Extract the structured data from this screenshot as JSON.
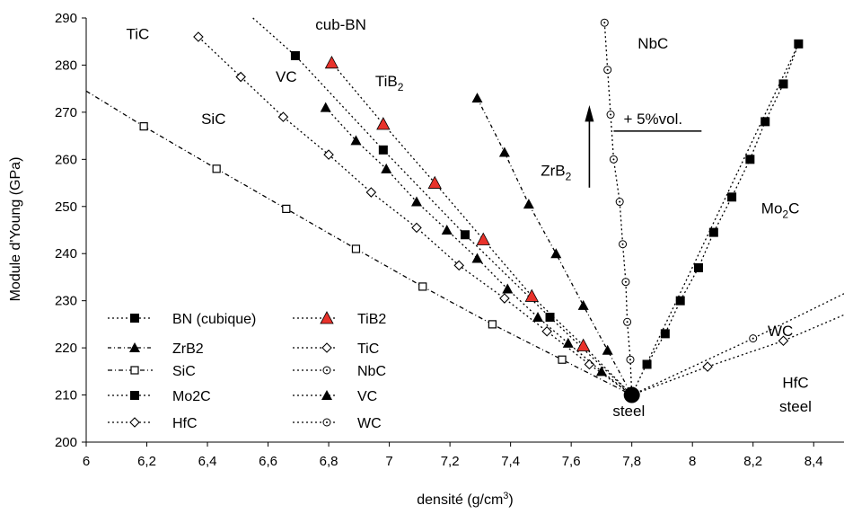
{
  "chart_data": {
    "type": "line",
    "xlabel": "densité (g/cm",
    "xlabel_sup": "3",
    "xlabel_end": ")",
    "ylabel": "Module d'Young (GPa)",
    "xlim": [
      6,
      8.5
    ],
    "ylim": [
      200,
      290
    ],
    "xticks": [
      6,
      6.2,
      6.4,
      6.6,
      6.8,
      7,
      7.2,
      7.4,
      7.6,
      7.8,
      8,
      8.2,
      8.4
    ],
    "xtick_labels": [
      "6",
      "6,2",
      "6,4",
      "6,6",
      "6,8",
      "7",
      "7,2",
      "7,4",
      "7,6",
      "7,8",
      "8",
      "8,2",
      "8,4"
    ],
    "yticks": [
      200,
      210,
      220,
      230,
      240,
      250,
      260,
      270,
      280,
      290
    ],
    "ytick_labels": [
      "200",
      "210",
      "220",
      "230",
      "240",
      "250",
      "260",
      "270",
      "280",
      "290"
    ],
    "legend_position": "bottom-left",
    "origin_point": {
      "x": 7.8,
      "y": 210
    },
    "series": [
      {
        "name": "BN (cubique)",
        "color": "#000000",
        "marker": "square-filled",
        "dash": "2,3",
        "line_start": {
          "x": 6.55,
          "y": 290
        },
        "points": [
          [
            6.69,
            282
          ],
          [
            6.98,
            262
          ],
          [
            7.25,
            244
          ],
          [
            7.53,
            226.5
          ]
        ]
      },
      {
        "name": "TiB2",
        "color": "#e8322b",
        "marker": "triangle-red",
        "dash": "2,3",
        "points": [
          [
            6.81,
            280.5
          ],
          [
            6.98,
            267.5
          ],
          [
            7.15,
            255
          ],
          [
            7.31,
            243
          ],
          [
            7.47,
            231
          ],
          [
            7.64,
            220.5
          ]
        ]
      },
      {
        "name": "ZrB2",
        "color": "#000000",
        "marker": "triangle-filled",
        "dash": "4,3,1,3",
        "points": [
          [
            7.29,
            273
          ],
          [
            7.38,
            261.5
          ],
          [
            7.46,
            250.5
          ],
          [
            7.55,
            240
          ],
          [
            7.64,
            229
          ],
          [
            7.72,
            219.5
          ]
        ]
      },
      {
        "name": "TiC",
        "color": "#000000",
        "marker": "diamond-open",
        "dash": "2,3",
        "points": [
          [
            6.37,
            286
          ],
          [
            6.51,
            277.5
          ],
          [
            6.65,
            269
          ],
          [
            6.8,
            261
          ],
          [
            6.94,
            253
          ],
          [
            7.09,
            245.5
          ],
          [
            7.23,
            237.5
          ],
          [
            7.38,
            230.5
          ],
          [
            7.52,
            223.5
          ],
          [
            7.66,
            216.5
          ]
        ]
      },
      {
        "name": "SiC",
        "color": "#000000",
        "marker": "square-open",
        "dash": "5,3,1,3",
        "line_start": {
          "x": 6.0,
          "y": 274.5
        },
        "points": [
          [
            6.19,
            267
          ],
          [
            6.43,
            258
          ],
          [
            6.66,
            249.5
          ],
          [
            6.89,
            241
          ],
          [
            7.11,
            233
          ],
          [
            7.34,
            225
          ],
          [
            7.57,
            217.5
          ]
        ]
      },
      {
        "name": "NbC",
        "color": "#000000",
        "marker": "circle-dot",
        "dash": "2,3",
        "points": [
          [
            7.71,
            289
          ],
          [
            7.72,
            279
          ],
          [
            7.73,
            269.5
          ],
          [
            7.74,
            260
          ],
          [
            7.76,
            251
          ],
          [
            7.77,
            242
          ],
          [
            7.78,
            234
          ],
          [
            7.785,
            225.5
          ],
          [
            7.795,
            217.5
          ]
        ]
      },
      {
        "name": "Mo2C",
        "color": "#000000",
        "marker": "square-filled",
        "dash": "2,3",
        "points": [
          [
            7.85,
            216.5
          ],
          [
            7.91,
            223
          ],
          [
            7.96,
            230
          ],
          [
            8.02,
            237
          ],
          [
            8.07,
            244.5
          ],
          [
            8.13,
            252
          ],
          [
            8.19,
            260
          ],
          [
            8.24,
            268
          ],
          [
            8.3,
            276
          ],
          [
            8.35,
            284.5
          ]
        ]
      },
      {
        "name": "VC",
        "color": "#000000",
        "marker": "triangle-filled",
        "dash": "2,3",
        "points": [
          [
            6.79,
            271
          ],
          [
            6.89,
            264
          ],
          [
            6.99,
            258
          ],
          [
            7.09,
            251
          ],
          [
            7.19,
            245
          ],
          [
            7.29,
            239
          ],
          [
            7.39,
            232.5
          ],
          [
            7.49,
            226.5
          ],
          [
            7.59,
            221
          ],
          [
            7.7,
            215
          ]
        ]
      },
      {
        "name": "HfC",
        "color": "#000000",
        "marker": "diamond-open",
        "dash": "2,3",
        "line_end": {
          "x": 8.5,
          "y": 227
        },
        "points": [
          [
            8.05,
            216
          ],
          [
            8.3,
            221.5
          ]
        ]
      },
      {
        "name": "WC",
        "color": "#000000",
        "marker": "circle-dot",
        "dash": "2,3",
        "line_end": {
          "x": 8.5,
          "y": 231.5
        },
        "points": [
          [
            8.2,
            222
          ]
        ]
      }
    ],
    "annotations": [
      {
        "text": "TiC",
        "x": 6.17,
        "y": 285.5
      },
      {
        "text": "cub-BN",
        "x": 6.84,
        "y": 287.5
      },
      {
        "text": "VC",
        "x": 6.66,
        "y": 276.5
      },
      {
        "text": "TiB",
        "sub": "2",
        "x": 7.0,
        "y": 275.5
      },
      {
        "text": "SiC",
        "x": 6.42,
        "y": 267.5
      },
      {
        "text": "NbC",
        "x": 7.87,
        "y": 283.5
      },
      {
        "text": "ZrB",
        "sub": "2",
        "x": 7.55,
        "y": 256.5
      },
      {
        "text": "+ 5%vol.",
        "x": 7.87,
        "y": 267.5
      },
      {
        "text": "Mo",
        "sub": "2",
        "after": "C",
        "x": 8.29,
        "y": 248.5
      },
      {
        "text": "WC",
        "x": 8.29,
        "y": 222.5
      },
      {
        "text": "HfC",
        "x": 8.34,
        "y": 211.5
      },
      {
        "text": "steel",
        "x": 7.79,
        "y": 205.5
      },
      {
        "text": "steel",
        "x": 8.34,
        "y": 206.5
      }
    ]
  }
}
